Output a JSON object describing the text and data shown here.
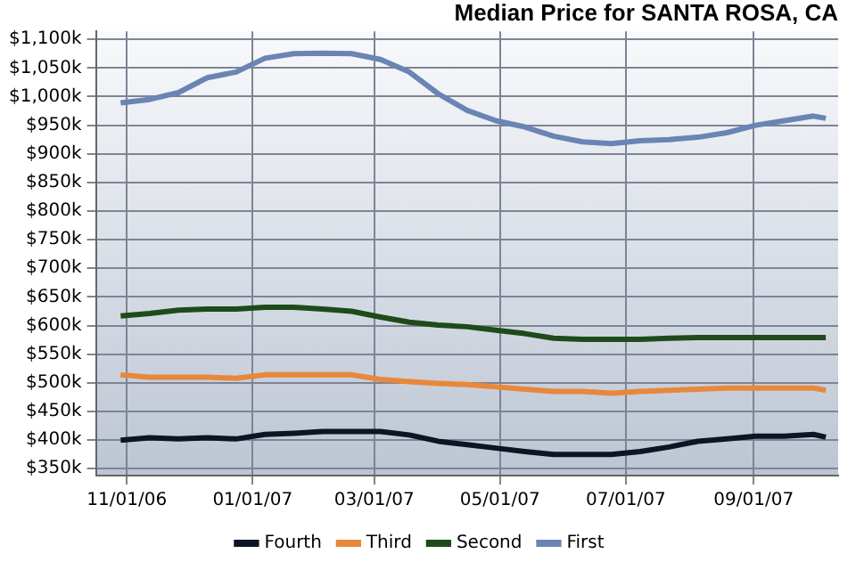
{
  "chart_data": {
    "type": "line",
    "title": "Median Price for SANTA ROSA, CA",
    "x": [
      "2006-10-29",
      "2006-11-12",
      "2006-11-26",
      "2006-12-10",
      "2006-12-24",
      "2007-01-07",
      "2007-01-21",
      "2007-02-04",
      "2007-02-18",
      "2007-03-04",
      "2007-03-18",
      "2007-04-01",
      "2007-04-15",
      "2007-04-29",
      "2007-05-13",
      "2007-05-27",
      "2007-06-10",
      "2007-06-24",
      "2007-07-08",
      "2007-07-22",
      "2007-08-05",
      "2007-08-19",
      "2007-09-02",
      "2007-09-16",
      "2007-09-30",
      "2007-10-06"
    ],
    "series": [
      {
        "name": "Fourth",
        "color": "#0d1424",
        "values": [
          400,
          404,
          402,
          404,
          402,
          410,
          412,
          415,
          415,
          415,
          409,
          398,
          392,
          386,
          380,
          375,
          375,
          375,
          380,
          388,
          398,
          402,
          407,
          407,
          410,
          405
        ]
      },
      {
        "name": "Third",
        "color": "#e8883a",
        "values": [
          514,
          510,
          510,
          510,
          508,
          514,
          514,
          514,
          514,
          506,
          502,
          499,
          497,
          493,
          489,
          485,
          485,
          482,
          485,
          487,
          489,
          491,
          491,
          491,
          491,
          487
        ]
      },
      {
        "name": "Second",
        "color": "#1f4a1a",
        "values": [
          617,
          621,
          627,
          629,
          629,
          632,
          632,
          629,
          625,
          615,
          606,
          601,
          598,
          592,
          586,
          578,
          576,
          576,
          576,
          578,
          579,
          579,
          579,
          579,
          579,
          579
        ]
      },
      {
        "name": "First",
        "color": "#6a84b4",
        "values": [
          989,
          995,
          1007,
          1033,
          1043,
          1067,
          1075,
          1076,
          1075,
          1065,
          1043,
          1005,
          976,
          958,
          947,
          931,
          921,
          918,
          923,
          925,
          929,
          937,
          950,
          958,
          966,
          962
        ]
      }
    ],
    "xlim": [
      "2006-10-17",
      "2007-10-12"
    ],
    "xticks": [
      {
        "value": "2006-11-01",
        "label": "11/01/06"
      },
      {
        "value": "2007-01-01",
        "label": "01/01/07"
      },
      {
        "value": "2007-03-01",
        "label": "03/01/07"
      },
      {
        "value": "2007-05-01",
        "label": "05/01/07"
      },
      {
        "value": "2007-07-01",
        "label": "07/01/07"
      },
      {
        "value": "2007-09-01",
        "label": "09/01/07"
      }
    ],
    "ylim": [
      338,
      1114
    ],
    "yticks": [
      {
        "value": 350,
        "label": "$350k"
      },
      {
        "value": 400,
        "label": "$400k"
      },
      {
        "value": 450,
        "label": "$450k"
      },
      {
        "value": 500,
        "label": "$500k"
      },
      {
        "value": 550,
        "label": "$550k"
      },
      {
        "value": 600,
        "label": "$600k"
      },
      {
        "value": 650,
        "label": "$650k"
      },
      {
        "value": 700,
        "label": "$700k"
      },
      {
        "value": 750,
        "label": "$750k"
      },
      {
        "value": 800,
        "label": "$800k"
      },
      {
        "value": 850,
        "label": "$850k"
      },
      {
        "value": 900,
        "label": "$900k"
      },
      {
        "value": 950,
        "label": "$950k"
      },
      {
        "value": 1000,
        "label": "$1,000k"
      },
      {
        "value": 1050,
        "label": "$1,050k"
      },
      {
        "value": 1100,
        "label": "$1,100k"
      }
    ],
    "grid": true,
    "legend": "bottom",
    "marker": "none",
    "line_style": "solid"
  }
}
